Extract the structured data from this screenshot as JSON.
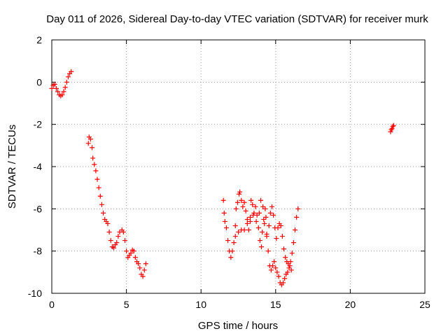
{
  "chart_data": {
    "type": "scatter",
    "title": "Day 011 of 2026, Sidereal Day-to-day VTEC variation (SDTVAR) for receiver murk",
    "xlabel": "GPS time / hours",
    "ylabel": "SDTVAR / TECUs",
    "xlim": [
      0,
      25
    ],
    "ylim": [
      -10,
      2
    ],
    "xticks": [
      0,
      5,
      10,
      15,
      20,
      25
    ],
    "yticks": [
      -10,
      -8,
      -6,
      -4,
      -2,
      0,
      2
    ],
    "xtick_labels": [
      "0",
      "5",
      "10",
      "15",
      "20",
      "25"
    ],
    "ytick_labels": [
      "-10",
      "-8",
      "-6",
      "-4",
      "-2",
      "0",
      "2"
    ],
    "grid": true,
    "marker": "+",
    "color": "#ff0000",
    "series": [
      {
        "name": "SDTVAR",
        "points": [
          [
            0.0,
            -0.3
          ],
          [
            0.1,
            -0.15
          ],
          [
            0.2,
            -0.1
          ],
          [
            0.3,
            -0.3
          ],
          [
            0.4,
            -0.45
          ],
          [
            0.5,
            -0.6
          ],
          [
            0.6,
            -0.65
          ],
          [
            0.7,
            -0.6
          ],
          [
            0.8,
            -0.45
          ],
          [
            0.9,
            -0.25
          ],
          [
            1.0,
            0.0
          ],
          [
            1.1,
            0.25
          ],
          [
            1.2,
            0.4
          ],
          [
            1.3,
            0.5
          ],
          [
            2.45,
            -2.9
          ],
          [
            2.5,
            -2.6
          ],
          [
            2.6,
            -2.7
          ],
          [
            2.7,
            -3.1
          ],
          [
            2.75,
            -3.6
          ],
          [
            2.85,
            -3.9
          ],
          [
            2.95,
            -4.2
          ],
          [
            3.05,
            -4.6
          ],
          [
            3.15,
            -5.0
          ],
          [
            3.25,
            -5.4
          ],
          [
            3.35,
            -5.8
          ],
          [
            3.45,
            -6.2
          ],
          [
            3.55,
            -6.5
          ],
          [
            3.65,
            -6.6
          ],
          [
            3.75,
            -6.7
          ],
          [
            3.85,
            -7.1
          ],
          [
            3.95,
            -7.5
          ],
          [
            4.05,
            -7.8
          ],
          [
            4.15,
            -7.85
          ],
          [
            4.25,
            -7.7
          ],
          [
            4.35,
            -7.6
          ],
          [
            4.45,
            -7.3
          ],
          [
            4.55,
            -7.1
          ],
          [
            4.7,
            -7.0
          ],
          [
            4.8,
            -7.1
          ],
          [
            4.9,
            -7.5
          ],
          [
            5.0,
            -8.0
          ],
          [
            5.1,
            -8.3
          ],
          [
            5.2,
            -8.2
          ],
          [
            5.3,
            -8.1
          ],
          [
            5.4,
            -7.95
          ],
          [
            5.5,
            -8.0
          ],
          [
            5.6,
            -8.3
          ],
          [
            5.7,
            -8.5
          ],
          [
            5.8,
            -8.6
          ],
          [
            5.9,
            -8.8
          ],
          [
            6.0,
            -9.1
          ],
          [
            6.1,
            -9.2
          ],
          [
            6.2,
            -8.9
          ],
          [
            6.3,
            -8.6
          ],
          [
            11.5,
            -5.6
          ],
          [
            11.55,
            -6.2
          ],
          [
            11.6,
            -6.6
          ],
          [
            11.7,
            -6.9
          ],
          [
            11.8,
            -7.5
          ],
          [
            11.9,
            -8.0
          ],
          [
            12.0,
            -8.3
          ],
          [
            12.1,
            -8.0
          ],
          [
            12.2,
            -7.6
          ],
          [
            12.3,
            -6.8
          ],
          [
            12.35,
            -6.0
          ],
          [
            12.45,
            -5.7
          ],
          [
            12.55,
            -5.3
          ],
          [
            12.6,
            -5.2
          ],
          [
            12.7,
            -5.6
          ],
          [
            12.8,
            -5.9
          ],
          [
            12.9,
            -5.7
          ],
          [
            13.0,
            -6.1
          ],
          [
            13.1,
            -6.5
          ],
          [
            13.2,
            -7.0
          ],
          [
            13.3,
            -6.6
          ],
          [
            13.35,
            -5.6
          ],
          [
            13.45,
            -5.8
          ],
          [
            13.55,
            -6.2
          ],
          [
            13.65,
            -5.9
          ],
          [
            13.75,
            -6.3
          ],
          [
            13.85,
            -6.9
          ],
          [
            13.95,
            -7.5
          ],
          [
            14.05,
            -7.8
          ],
          [
            14.1,
            -7.1
          ],
          [
            14.2,
            -6.5
          ],
          [
            14.3,
            -6.0
          ],
          [
            14.35,
            -6.4
          ],
          [
            14.4,
            -7.2
          ],
          [
            14.5,
            -8.0
          ],
          [
            14.6,
            -8.7
          ],
          [
            14.7,
            -8.9
          ],
          [
            14.8,
            -8.7
          ],
          [
            14.9,
            -8.5
          ],
          [
            15.0,
            -8.8
          ],
          [
            15.1,
            -9.0
          ],
          [
            15.2,
            -9.2
          ],
          [
            15.3,
            -9.5
          ],
          [
            15.4,
            -9.6
          ],
          [
            15.5,
            -9.5
          ],
          [
            15.6,
            -9.3
          ],
          [
            15.7,
            -9.1
          ],
          [
            15.8,
            -9.0
          ],
          [
            15.9,
            -8.8
          ],
          [
            16.0,
            -8.5
          ],
          [
            16.1,
            -8.1
          ],
          [
            16.2,
            -7.6
          ],
          [
            16.3,
            -7.0
          ],
          [
            16.4,
            -6.4
          ],
          [
            16.5,
            -6.0
          ],
          [
            12.3,
            -7.3
          ],
          [
            12.5,
            -7.1
          ],
          [
            12.7,
            -7.0
          ],
          [
            12.9,
            -7.0
          ],
          [
            13.1,
            -6.7
          ],
          [
            13.3,
            -6.4
          ],
          [
            13.5,
            -6.3
          ],
          [
            13.7,
            -6.6
          ],
          [
            13.9,
            -6.2
          ],
          [
            14.0,
            -5.6
          ],
          [
            14.15,
            -5.9
          ],
          [
            14.25,
            -6.7
          ],
          [
            14.4,
            -7.3
          ],
          [
            14.55,
            -6.8
          ],
          [
            14.65,
            -6.2
          ],
          [
            14.75,
            -5.9
          ],
          [
            14.85,
            -6.3
          ],
          [
            14.95,
            -6.9
          ],
          [
            15.05,
            -7.4
          ],
          [
            15.15,
            -6.9
          ],
          [
            15.25,
            -6.7
          ],
          [
            15.35,
            -6.8
          ],
          [
            15.45,
            -7.3
          ],
          [
            15.55,
            -7.9
          ],
          [
            15.65,
            -8.3
          ],
          [
            15.75,
            -8.5
          ],
          [
            15.85,
            -8.6
          ],
          [
            15.95,
            -8.7
          ],
          [
            16.05,
            -8.9
          ],
          [
            22.7,
            -2.35
          ],
          [
            22.75,
            -2.25
          ],
          [
            22.8,
            -2.2
          ],
          [
            22.85,
            -2.1
          ],
          [
            22.9,
            -2.05
          ]
        ]
      }
    ]
  }
}
